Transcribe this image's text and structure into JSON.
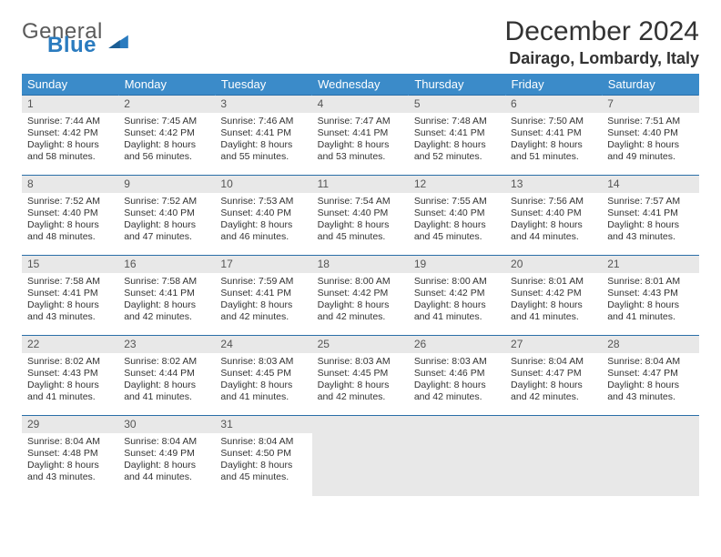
{
  "brand": {
    "word1": "General",
    "word2": "Blue"
  },
  "title": "December 2024",
  "location": "Dairago, Lombardy, Italy",
  "colors": {
    "header_bg": "#3b8bc9",
    "row_rule": "#2a6fa8",
    "daynum_bg": "#e8e8e8",
    "logo_blue": "#2a7bbf",
    "logo_gray": "#5a5a5a"
  },
  "weekdays": [
    "Sunday",
    "Monday",
    "Tuesday",
    "Wednesday",
    "Thursday",
    "Friday",
    "Saturday"
  ],
  "days": [
    {
      "n": 1,
      "sr": "7:44 AM",
      "ss": "4:42 PM",
      "dl": "8 hours and 58 minutes."
    },
    {
      "n": 2,
      "sr": "7:45 AM",
      "ss": "4:42 PM",
      "dl": "8 hours and 56 minutes."
    },
    {
      "n": 3,
      "sr": "7:46 AM",
      "ss": "4:41 PM",
      "dl": "8 hours and 55 minutes."
    },
    {
      "n": 4,
      "sr": "7:47 AM",
      "ss": "4:41 PM",
      "dl": "8 hours and 53 minutes."
    },
    {
      "n": 5,
      "sr": "7:48 AM",
      "ss": "4:41 PM",
      "dl": "8 hours and 52 minutes."
    },
    {
      "n": 6,
      "sr": "7:50 AM",
      "ss": "4:41 PM",
      "dl": "8 hours and 51 minutes."
    },
    {
      "n": 7,
      "sr": "7:51 AM",
      "ss": "4:40 PM",
      "dl": "8 hours and 49 minutes."
    },
    {
      "n": 8,
      "sr": "7:52 AM",
      "ss": "4:40 PM",
      "dl": "8 hours and 48 minutes."
    },
    {
      "n": 9,
      "sr": "7:52 AM",
      "ss": "4:40 PM",
      "dl": "8 hours and 47 minutes."
    },
    {
      "n": 10,
      "sr": "7:53 AM",
      "ss": "4:40 PM",
      "dl": "8 hours and 46 minutes."
    },
    {
      "n": 11,
      "sr": "7:54 AM",
      "ss": "4:40 PM",
      "dl": "8 hours and 45 minutes."
    },
    {
      "n": 12,
      "sr": "7:55 AM",
      "ss": "4:40 PM",
      "dl": "8 hours and 45 minutes."
    },
    {
      "n": 13,
      "sr": "7:56 AM",
      "ss": "4:40 PM",
      "dl": "8 hours and 44 minutes."
    },
    {
      "n": 14,
      "sr": "7:57 AM",
      "ss": "4:41 PM",
      "dl": "8 hours and 43 minutes."
    },
    {
      "n": 15,
      "sr": "7:58 AM",
      "ss": "4:41 PM",
      "dl": "8 hours and 43 minutes."
    },
    {
      "n": 16,
      "sr": "7:58 AM",
      "ss": "4:41 PM",
      "dl": "8 hours and 42 minutes."
    },
    {
      "n": 17,
      "sr": "7:59 AM",
      "ss": "4:41 PM",
      "dl": "8 hours and 42 minutes."
    },
    {
      "n": 18,
      "sr": "8:00 AM",
      "ss": "4:42 PM",
      "dl": "8 hours and 42 minutes."
    },
    {
      "n": 19,
      "sr": "8:00 AM",
      "ss": "4:42 PM",
      "dl": "8 hours and 41 minutes."
    },
    {
      "n": 20,
      "sr": "8:01 AM",
      "ss": "4:42 PM",
      "dl": "8 hours and 41 minutes."
    },
    {
      "n": 21,
      "sr": "8:01 AM",
      "ss": "4:43 PM",
      "dl": "8 hours and 41 minutes."
    },
    {
      "n": 22,
      "sr": "8:02 AM",
      "ss": "4:43 PM",
      "dl": "8 hours and 41 minutes."
    },
    {
      "n": 23,
      "sr": "8:02 AM",
      "ss": "4:44 PM",
      "dl": "8 hours and 41 minutes."
    },
    {
      "n": 24,
      "sr": "8:03 AM",
      "ss": "4:45 PM",
      "dl": "8 hours and 41 minutes."
    },
    {
      "n": 25,
      "sr": "8:03 AM",
      "ss": "4:45 PM",
      "dl": "8 hours and 42 minutes."
    },
    {
      "n": 26,
      "sr": "8:03 AM",
      "ss": "4:46 PM",
      "dl": "8 hours and 42 minutes."
    },
    {
      "n": 27,
      "sr": "8:04 AM",
      "ss": "4:47 PM",
      "dl": "8 hours and 42 minutes."
    },
    {
      "n": 28,
      "sr": "8:04 AM",
      "ss": "4:47 PM",
      "dl": "8 hours and 43 minutes."
    },
    {
      "n": 29,
      "sr": "8:04 AM",
      "ss": "4:48 PM",
      "dl": "8 hours and 43 minutes."
    },
    {
      "n": 30,
      "sr": "8:04 AM",
      "ss": "4:49 PM",
      "dl": "8 hours and 44 minutes."
    },
    {
      "n": 31,
      "sr": "8:04 AM",
      "ss": "4:50 PM",
      "dl": "8 hours and 45 minutes."
    }
  ],
  "labels": {
    "sunrise": "Sunrise: ",
    "sunset": "Sunset: ",
    "daylight": "Daylight: "
  },
  "layout": {
    "start_weekday": 0,
    "trailing_blanks": 4
  }
}
